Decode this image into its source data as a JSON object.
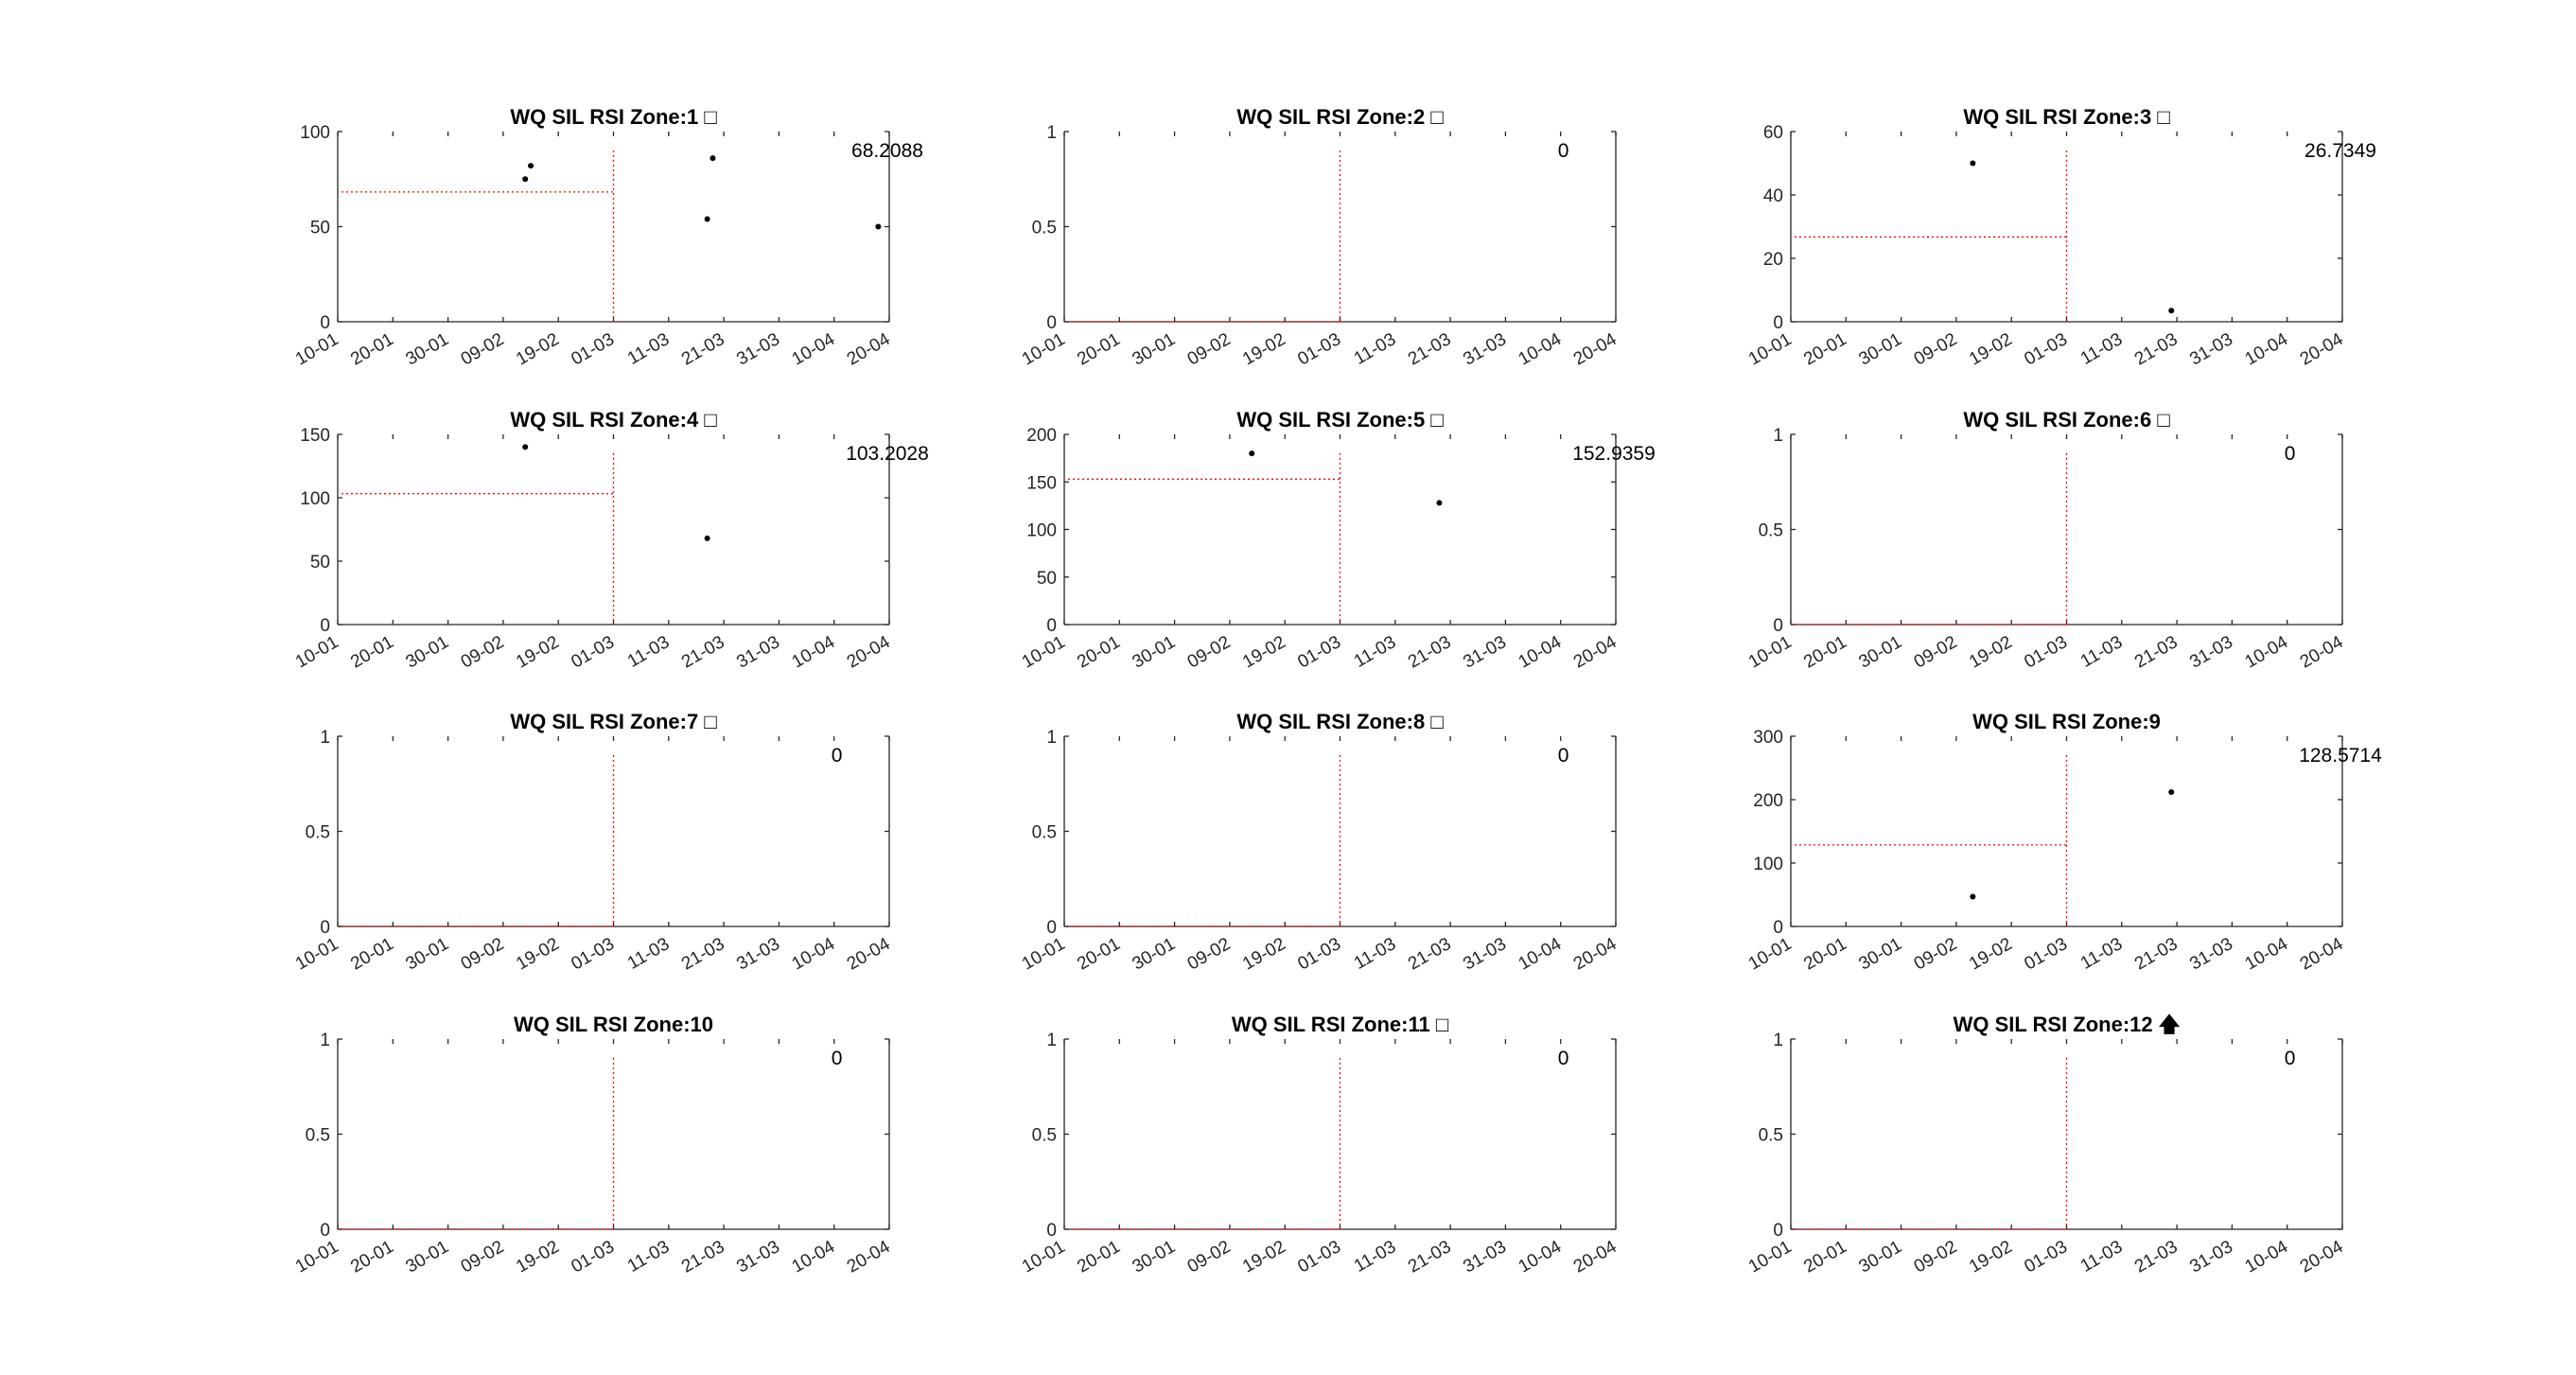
{
  "chart_data": [
    {
      "type": "scatter",
      "title": "WQ SIL RSI Zone:1 □",
      "ylim": [
        0,
        100
      ],
      "yticks": [
        "0",
        "50",
        "100"
      ],
      "points": [
        {
          "x": "13-02",
          "y": 75
        },
        {
          "x": "14-02",
          "y": 82
        },
        {
          "x": "18-03",
          "y": 54
        },
        {
          "x": "19-03",
          "y": 86
        },
        {
          "x": "18-04",
          "y": 50
        }
      ],
      "ref_level": 68.2088,
      "annotation": "68.2088"
    },
    {
      "type": "scatter",
      "title": "WQ SIL RSI Zone:2 □",
      "ylim": [
        0,
        1
      ],
      "yticks": [
        "0",
        "0.5",
        "1"
      ],
      "points": [],
      "ref_level": 0,
      "annotation": "0"
    },
    {
      "type": "scatter",
      "title": "WQ SIL RSI Zone:3 □",
      "ylim": [
        0,
        60
      ],
      "yticks": [
        "0",
        "20",
        "40",
        "60"
      ],
      "points": [
        {
          "x": "12-02",
          "y": 50
        },
        {
          "x": "20-03",
          "y": 3.5
        }
      ],
      "ref_level": 26.7349,
      "annotation": "26.7349"
    },
    {
      "type": "scatter",
      "title": "WQ SIL RSI Zone:4 □",
      "ylim": [
        0,
        150
      ],
      "yticks": [
        "0",
        "50",
        "100",
        "150"
      ],
      "points": [
        {
          "x": "13-02",
          "y": 140
        },
        {
          "x": "18-03",
          "y": 68
        }
      ],
      "ref_level": 103.2028,
      "annotation": "103.2028"
    },
    {
      "type": "scatter",
      "title": "WQ SIL RSI Zone:5 □",
      "ylim": [
        0,
        200
      ],
      "yticks": [
        "0",
        "50",
        "100",
        "150",
        "200"
      ],
      "points": [
        {
          "x": "13-02",
          "y": 180
        },
        {
          "x": "19-03",
          "y": 128
        }
      ],
      "ref_level": 152.9359,
      "annotation": "152.9359"
    },
    {
      "type": "scatter",
      "title": "WQ SIL RSI Zone:6 □",
      "ylim": [
        0,
        1
      ],
      "yticks": [
        "0",
        "0.5",
        "1"
      ],
      "points": [],
      "ref_level": 0,
      "annotation": "0"
    },
    {
      "type": "scatter",
      "title": "WQ SIL RSI Zone:7 □",
      "ylim": [
        0,
        1
      ],
      "yticks": [
        "0",
        "0.5",
        "1"
      ],
      "points": [],
      "ref_level": 0,
      "annotation": "0"
    },
    {
      "type": "scatter",
      "title": "WQ SIL RSI Zone:8 □",
      "ylim": [
        0,
        1
      ],
      "yticks": [
        "0",
        "0.5",
        "1"
      ],
      "points": [],
      "ref_level": 0,
      "annotation": "0"
    },
    {
      "type": "scatter",
      "title": "WQ SIL RSI Zone:9",
      "ylim": [
        0,
        300
      ],
      "yticks": [
        "0",
        "100",
        "200",
        "300"
      ],
      "points": [
        {
          "x": "12-02",
          "y": 47
        },
        {
          "x": "20-03",
          "y": 212
        }
      ],
      "ref_level": 128.5714,
      "annotation": "128.5714"
    },
    {
      "type": "scatter",
      "title": "WQ SIL RSI Zone:10",
      "ylim": [
        0,
        1
      ],
      "yticks": [
        "0",
        "0.5",
        "1"
      ],
      "points": [],
      "ref_level": 0,
      "annotation": "0"
    },
    {
      "type": "scatter",
      "title": "WQ SIL RSI Zone:11 □",
      "ylim": [
        0,
        1
      ],
      "yticks": [
        "0",
        "0.5",
        "1"
      ],
      "points": [],
      "ref_level": 0,
      "annotation": "0"
    },
    {
      "type": "scatter",
      "title": "WQ SIL RSI Zone:12 🡅",
      "ylim": [
        0,
        1
      ],
      "yticks": [
        "0",
        "0.5",
        "1"
      ],
      "points": [],
      "ref_level": 0,
      "annotation": "0"
    }
  ],
  "x_axis": {
    "tick_labels": [
      "10-01",
      "20-01",
      "30-01",
      "09-02",
      "19-02",
      "01-03",
      "11-03",
      "21-03",
      "31-03",
      "10-04",
      "20-04"
    ],
    "reference_date": "01-03"
  },
  "colors": {
    "points": "#000000",
    "reference_line": "#ff0000",
    "axes": "#262626"
  }
}
